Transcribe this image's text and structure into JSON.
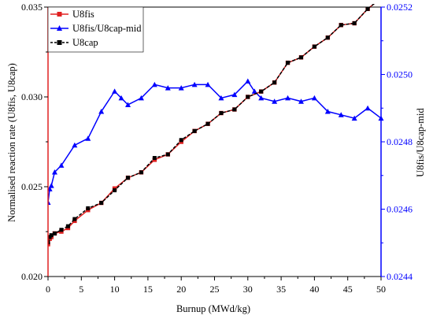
{
  "chart_data": {
    "type": "line",
    "xlabel": "Burnup (MWd/kg)",
    "ylabel": "Normalised reaction rate (U8fis, U8cap)",
    "y2label": "U8fis/U8cap-mid",
    "xlim": [
      0,
      50
    ],
    "ylim": [
      0.02,
      0.035
    ],
    "y2lim": [
      0.0244,
      0.0252
    ],
    "x_ticks": [
      "0",
      "5",
      "10",
      "15",
      "20",
      "25",
      "30",
      "35",
      "40",
      "45",
      "50"
    ],
    "y_ticks": [
      "0.020",
      "0.025",
      "0.030",
      "0.035"
    ],
    "y2_ticks": [
      "0.0244",
      "0.0246",
      "0.0248",
      "0.0250",
      "0.0252"
    ],
    "legend_position": "top-left",
    "grid": false,
    "series": [
      {
        "name": "U8fis",
        "axis": "left",
        "color": "#e02020",
        "marker": "square",
        "x": [
          0,
          0.25,
          0.5,
          1,
          2,
          3,
          4,
          6,
          8,
          10,
          12,
          14,
          16,
          18,
          20,
          22,
          24,
          26,
          28,
          30,
          32,
          34,
          36,
          38,
          40,
          42,
          44,
          46,
          48,
          50
        ],
        "values": [
          0.0218,
          0.0221,
          0.0222,
          0.0224,
          0.0225,
          0.0227,
          0.0231,
          0.0237,
          0.0241,
          0.0249,
          0.0255,
          0.0258,
          0.0265,
          0.0268,
          0.0275,
          0.0281,
          0.0285,
          0.0291,
          0.0293,
          0.03,
          0.0303,
          0.0308,
          0.0319,
          0.0322,
          0.0328,
          0.0333,
          0.034,
          0.0341,
          0.0349,
          0.0355
        ]
      },
      {
        "name": "U8fis/U8cap-mid",
        "axis": "right",
        "color": "#0000ff",
        "marker": "triangle",
        "x": [
          0,
          0.25,
          0.5,
          1,
          2,
          4,
          6,
          8,
          10,
          11,
          12,
          14,
          16,
          18,
          20,
          22,
          24,
          26,
          28,
          30,
          31,
          32,
          34,
          36,
          38,
          40,
          42,
          44,
          46,
          48,
          50
        ],
        "values": [
          0.02462,
          0.02466,
          0.02467,
          0.02471,
          0.02473,
          0.02479,
          0.02481,
          0.02489,
          0.02495,
          0.02493,
          0.02491,
          0.02493,
          0.02497,
          0.02496,
          0.02496,
          0.02497,
          0.02497,
          0.02493,
          0.02494,
          0.02498,
          0.02495,
          0.02493,
          0.02492,
          0.02493,
          0.02492,
          0.02493,
          0.02489,
          0.02488,
          0.02487,
          0.0249,
          0.02487
        ]
      },
      {
        "name": "U8cap",
        "axis": "left",
        "color": "#000000",
        "marker": "square",
        "dashed": true,
        "x": [
          0,
          0.25,
          0.5,
          1,
          2,
          3,
          4,
          6,
          8,
          10,
          12,
          14,
          16,
          18,
          20,
          22,
          24,
          26,
          28,
          30,
          32,
          34,
          36,
          38,
          40,
          42,
          44,
          46,
          48,
          50
        ],
        "values": [
          0.0219,
          0.0222,
          0.0223,
          0.0224,
          0.0226,
          0.0228,
          0.0232,
          0.0238,
          0.0241,
          0.0248,
          0.0255,
          0.0258,
          0.0266,
          0.0268,
          0.0276,
          0.0281,
          0.0285,
          0.0291,
          0.0293,
          0.03,
          0.0303,
          0.0308,
          0.0319,
          0.0322,
          0.0328,
          0.0333,
          0.034,
          0.0341,
          0.0349,
          0.0355
        ]
      }
    ]
  }
}
